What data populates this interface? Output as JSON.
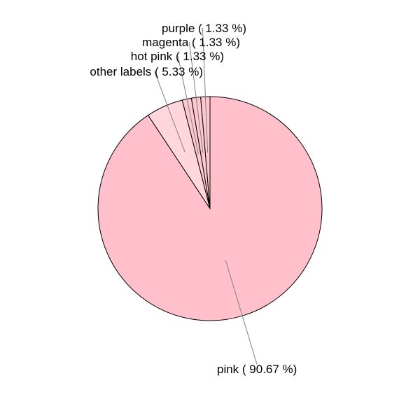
{
  "chart_data": {
    "type": "pie",
    "title": "",
    "slices": [
      {
        "name": "pink",
        "value": 90.67,
        "label": "pink ( 90.67 %)",
        "color": "#FFC0CB"
      },
      {
        "name": "other labels",
        "value": 5.33,
        "label": "other labels ( 5.33 %)",
        "color": "#FFD6DC"
      },
      {
        "name": "hot pink",
        "value": 1.33,
        "label": "hot pink ( 1.33 %)",
        "color": "#FFC7D0"
      },
      {
        "name": "magenta",
        "value": 1.33,
        "label": "magenta ( 1.33 %)",
        "color": "#FFC7D0"
      },
      {
        "name": "purple",
        "value": 1.33,
        "label": "purple ( 1.33 %)",
        "color": "#FFC7D0"
      }
    ]
  }
}
